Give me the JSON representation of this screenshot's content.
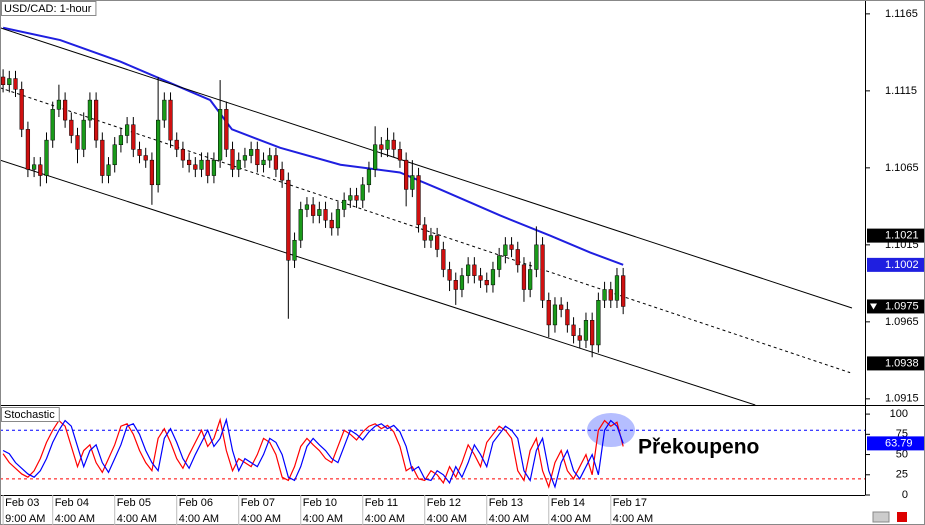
{
  "chart_data": [
    {
      "type": "candlestick",
      "title": "USD/CAD: 1-hour",
      "x": [
        0,
        1,
        2,
        3,
        4,
        5,
        6,
        7,
        8,
        9,
        10,
        11,
        12,
        13,
        14,
        15,
        16,
        17,
        18,
        19,
        20,
        21,
        22,
        23,
        24,
        25,
        26,
        27,
        28,
        29,
        30,
        31,
        32,
        33,
        34,
        35,
        36,
        37,
        38,
        39,
        40,
        41,
        42,
        43,
        44,
        45,
        46,
        47,
        48,
        49,
        50,
        51,
        52,
        53,
        54,
        55,
        56,
        57,
        58,
        59,
        60,
        61,
        62,
        63,
        64,
        65,
        66,
        67,
        68,
        69,
        70,
        71,
        72,
        73,
        74,
        75,
        76,
        77,
        78,
        79,
        80,
        81,
        82,
        83,
        84,
        85,
        86,
        87,
        88,
        89,
        90,
        91,
        92,
        93,
        94,
        95,
        96,
        97,
        98,
        99,
        100
      ],
      "open": [
        1.1124,
        1.1119,
        1.1123,
        1.1116,
        1.109,
        1.1064,
        1.1067,
        1.106,
        1.1083,
        1.1103,
        1.1109,
        1.1096,
        1.1086,
        1.1077,
        1.1096,
        1.1109,
        1.1083,
        1.106,
        1.1067,
        1.108,
        1.1086,
        1.1093,
        1.1077,
        1.1073,
        1.107,
        1.1054,
        1.1096,
        1.1109,
        1.1083,
        1.1077,
        1.107,
        1.1067,
        1.1064,
        1.107,
        1.106,
        1.107,
        1.1103,
        1.1077,
        1.1064,
        1.107,
        1.1073,
        1.1077,
        1.1067,
        1.107,
        1.1073,
        1.1064,
        1.1057,
        1.1005,
        1.1018,
        1.1038,
        1.1041,
        1.1034,
        1.1038,
        1.1031,
        1.1026,
        1.1038,
        1.1044,
        1.1047,
        1.1044,
        1.1054,
        1.1064,
        1.108,
        1.1077,
        1.1083,
        1.1077,
        1.107,
        1.1051,
        1.106,
        1.1028,
        1.1018,
        1.1021,
        1.1012,
        1.0999,
        1.0992,
        1.0986,
        1.0995,
        1.1002,
        1.0995,
        1.0992,
        1.0989,
        1.0999,
        1.1008,
        1.1015,
        1.1012,
        1.1002,
        1.0986,
        1.0999,
        1.1015,
        1.0979,
        1.0963,
        1.0976,
        1.0973,
        1.0963,
        1.0956,
        1.0953,
        1.0966,
        1.095,
        1.0979,
        1.0986,
        1.0979,
        1.0995
      ],
      "high": [
        1.1129,
        1.1128,
        1.1128,
        1.1121,
        1.1095,
        1.1072,
        1.1072,
        1.1088,
        1.1108,
        1.1119,
        1.1114,
        1.1101,
        1.1091,
        1.1101,
        1.1114,
        1.1114,
        1.1088,
        1.1072,
        1.1085,
        1.1091,
        1.1098,
        1.1098,
        1.1082,
        1.1078,
        1.1075,
        1.1124,
        1.1114,
        1.1114,
        1.1088,
        1.1082,
        1.1075,
        1.1072,
        1.1075,
        1.1075,
        1.1075,
        1.1122,
        1.1108,
        1.1082,
        1.1075,
        1.1078,
        1.1082,
        1.1082,
        1.1075,
        1.1078,
        1.1078,
        1.1069,
        1.1062,
        1.1023,
        1.1043,
        1.1046,
        1.1046,
        1.1043,
        1.1043,
        1.1036,
        1.1043,
        1.1049,
        1.1052,
        1.1052,
        1.1059,
        1.1069,
        1.1092,
        1.1085,
        1.1091,
        1.1088,
        1.1082,
        1.1075,
        1.107,
        1.1065,
        1.1033,
        1.1026,
        1.1026,
        1.1017,
        1.1004,
        1.0997,
        1.1,
        1.1007,
        1.1007,
        1.1,
        1.0997,
        1.1004,
        1.1013,
        1.102,
        1.102,
        1.1017,
        1.1007,
        1.1004,
        1.1027,
        1.102,
        1.0984,
        1.0981,
        1.0981,
        1.0978,
        1.0968,
        1.0961,
        1.0971,
        1.0971,
        1.0984,
        1.0991,
        1.0991,
        1.1,
        1.1
      ],
      "low": [
        1.1114,
        1.1114,
        1.1111,
        1.1085,
        1.1059,
        1.1059,
        1.1053,
        1.1055,
        1.1078,
        1.1098,
        1.1091,
        1.1081,
        1.1068,
        1.1072,
        1.1091,
        1.1078,
        1.1055,
        1.1055,
        1.1062,
        1.1075,
        1.1081,
        1.1072,
        1.1068,
        1.1065,
        1.1041,
        1.1049,
        1.1091,
        1.1078,
        1.1072,
        1.1065,
        1.1062,
        1.1059,
        1.1059,
        1.1055,
        1.1055,
        1.1065,
        1.1072,
        1.1059,
        1.1059,
        1.1065,
        1.1068,
        1.1062,
        1.1062,
        1.1065,
        1.1059,
        1.1052,
        1.0967,
        1.1,
        1.1013,
        1.1033,
        1.1029,
        1.1029,
        1.1026,
        1.1021,
        1.1021,
        1.1033,
        1.1039,
        1.1039,
        1.1039,
        1.1049,
        1.1059,
        1.1072,
        1.1072,
        1.1072,
        1.1065,
        1.104,
        1.1046,
        1.1023,
        1.1013,
        1.1013,
        1.1007,
        1.0994,
        1.0985,
        1.0976,
        1.0981,
        1.099,
        1.099,
        1.0987,
        1.0984,
        1.0984,
        1.0994,
        1.1003,
        1.1007,
        1.0997,
        1.0978,
        1.0981,
        1.0994,
        1.0974,
        1.0955,
        1.0958,
        1.0968,
        1.0958,
        1.0951,
        1.0948,
        1.0948,
        1.0942,
        1.0945,
        1.0974,
        1.0974,
        1.0974,
        1.097
      ],
      "close": [
        1.1119,
        1.1123,
        1.1116,
        1.109,
        1.1064,
        1.1067,
        1.106,
        1.1083,
        1.1103,
        1.1109,
        1.1096,
        1.1086,
        1.1077,
        1.1096,
        1.1109,
        1.1083,
        1.106,
        1.1067,
        1.108,
        1.1086,
        1.1093,
        1.1077,
        1.1073,
        1.107,
        1.1054,
        1.1096,
        1.1109,
        1.1083,
        1.1077,
        1.107,
        1.1067,
        1.1064,
        1.107,
        1.106,
        1.107,
        1.1103,
        1.1077,
        1.1064,
        1.107,
        1.1073,
        1.1077,
        1.1067,
        1.107,
        1.1073,
        1.1064,
        1.1057,
        1.1005,
        1.1018,
        1.1038,
        1.1041,
        1.1034,
        1.1038,
        1.1031,
        1.1026,
        1.1038,
        1.1044,
        1.1047,
        1.1044,
        1.1054,
        1.1064,
        1.108,
        1.1077,
        1.1083,
        1.1077,
        1.107,
        1.1051,
        1.106,
        1.1028,
        1.1018,
        1.1021,
        1.1012,
        1.0999,
        1.0992,
        1.0986,
        1.0995,
        1.1002,
        1.0995,
        1.0992,
        1.0989,
        1.0999,
        1.1008,
        1.1015,
        1.1012,
        1.1002,
        1.0986,
        1.0999,
        1.1015,
        1.0979,
        1.0963,
        1.0976,
        1.0973,
        1.0963,
        1.0956,
        1.0953,
        1.0966,
        1.095,
        1.0979,
        1.0986,
        1.0979,
        1.0995,
        1.0975
      ],
      "up_color": "#1a9a1a",
      "down_color": "#d01010",
      "overlays": [
        {
          "x": [
            0,
            9.2,
            18.9,
            25.3,
            33.4,
            36.9,
            44.7,
            54.4,
            64,
            70.5,
            80.2,
            88.2,
            94.7,
            100
          ],
          "values": [
            1.1156,
            1.1148,
            1.1134,
            1.1123,
            1.1109,
            1.109,
            1.1078,
            1.1067,
            1.1062,
            1.1051,
            1.1034,
            1.1021,
            1.101,
            1.1002
          ],
          "color": "#1f1fe0",
          "dashed": false,
          "label_last": true
        },
        {
          "x": [
            -0.5,
            136.9
          ],
          "values": [
            1.1156,
            1.0974
          ],
          "color": "#000000",
          "dashed": false,
          "label_last": false
        },
        {
          "x": [
            -0.5,
            136.6
          ],
          "values": [
            1.1117,
            1.0932
          ],
          "color": "#000000",
          "dashed": true,
          "label_last": false
        },
        {
          "x": [
            -0.5,
            121.3
          ],
          "values": [
            1.107,
            1.0911
          ],
          "color": "#000000",
          "dashed": false,
          "label_last": false
        }
      ],
      "markers": [
        {
          "value": 1.1021,
          "color": "#000000"
        },
        {
          "value": 1.0938,
          "color": "#000000"
        }
      ],
      "last_close_color": "#000000",
      "xlim": [
        -0.5,
        139
      ],
      "ylim": [
        1.0911,
        1.1174
      ],
      "yticks": [
        1.1165,
        1.1115,
        1.1065,
        1.1015,
        1.0965,
        1.0915
      ],
      "grid": false
    },
    {
      "type": "line",
      "title": "Stochastic",
      "x": [
        0,
        1,
        2,
        3,
        4,
        5,
        6,
        7,
        8,
        9,
        10,
        11,
        12,
        13,
        14,
        15,
        16,
        17,
        18,
        19,
        20,
        21,
        22,
        23,
        24,
        25,
        26,
        27,
        28,
        29,
        30,
        31,
        32,
        33,
        34,
        35,
        36,
        37,
        38,
        39,
        40,
        41,
        42,
        43,
        44,
        45,
        46,
        47,
        48,
        49,
        50,
        51,
        52,
        53,
        54,
        55,
        56,
        57,
        58,
        59,
        60,
        61,
        62,
        63,
        64,
        65,
        66,
        67,
        68,
        69,
        70,
        71,
        72,
        73,
        74,
        75,
        76,
        77,
        78,
        79,
        80,
        81,
        82,
        83,
        84,
        85,
        86,
        87,
        88,
        89,
        90,
        91,
        92,
        93,
        94,
        95,
        96,
        97,
        98,
        99,
        100
      ],
      "series": [
        {
          "color": "#ff0000",
          "values": [
            51,
            40,
            33,
            26,
            22,
            30,
            45,
            65,
            80,
            92,
            85,
            60,
            35,
            55,
            62,
            40,
            28,
            45,
            62,
            85,
            88,
            75,
            55,
            40,
            30,
            70,
            82,
            65,
            45,
            33,
            50,
            65,
            80,
            60,
            70,
            93,
            55,
            30,
            45,
            40,
            35,
            50,
            70,
            65,
            50,
            22,
            18,
            35,
            60,
            70,
            62,
            55,
            45,
            40,
            60,
            80,
            75,
            68,
            78,
            85,
            88,
            82,
            86,
            78,
            60,
            30,
            35,
            20,
            18,
            30,
            25,
            15,
            35,
            22,
            40,
            62,
            50,
            35,
            65,
            75,
            85,
            80,
            70,
            30,
            18,
            55,
            70,
            30,
            10,
            40,
            55,
            30,
            20,
            35,
            50,
            25,
            80,
            92,
            85,
            90,
            60
          ]
        },
        {
          "color": "#0000ff",
          "values": [
            55,
            51,
            40,
            33,
            26,
            22,
            30,
            45,
            65,
            80,
            92,
            85,
            60,
            35,
            55,
            62,
            40,
            28,
            45,
            62,
            85,
            88,
            75,
            55,
            40,
            30,
            70,
            82,
            65,
            45,
            33,
            50,
            65,
            80,
            60,
            70,
            93,
            55,
            30,
            45,
            40,
            35,
            50,
            70,
            65,
            50,
            22,
            18,
            35,
            60,
            70,
            62,
            55,
            45,
            40,
            60,
            80,
            75,
            68,
            78,
            85,
            88,
            82,
            86,
            78,
            60,
            30,
            35,
            20,
            18,
            30,
            25,
            15,
            35,
            22,
            40,
            62,
            50,
            35,
            65,
            75,
            85,
            80,
            70,
            30,
            18,
            55,
            70,
            30,
            10,
            40,
            55,
            30,
            20,
            35,
            50,
            25,
            80,
            92,
            85,
            63.79
          ]
        }
      ],
      "label_last_series": 1,
      "levels": [
        {
          "value": 80,
          "color": "#0000ff"
        },
        {
          "value": 20,
          "color": "#ff0000"
        }
      ],
      "annotation": "Překoupeno",
      "xlim": [
        -0.5,
        139
      ],
      "ylim": [
        0,
        110
      ],
      "yticks": [
        0,
        25,
        50,
        75,
        100
      ],
      "grid": false,
      "xticks": [
        {
          "value": 0,
          "label": "Feb 03"
        },
        {
          "value": 8,
          "label": "Feb 04"
        },
        {
          "value": 18,
          "label": "Feb 05"
        },
        {
          "value": 28,
          "label": "Feb 06"
        },
        {
          "value": 38,
          "label": "Feb 07"
        },
        {
          "value": 48,
          "label": "Feb 10"
        },
        {
          "value": 58,
          "label": "Feb 11"
        },
        {
          "value": 68,
          "label": "Feb 12"
        },
        {
          "value": 78,
          "label": "Feb 13"
        },
        {
          "value": 88,
          "label": "Feb 14"
        },
        {
          "value": 98,
          "label": "Feb 17"
        }
      ],
      "xtick_times": [
        "9:00 AM",
        "4:00 AM",
        "4:00 AM",
        "4:00 AM",
        "4:00 AM",
        "4:00 AM",
        "4:00 AM",
        "4:00 AM",
        "4:00 AM",
        "4:00 AM",
        "4:00 AM"
      ]
    }
  ]
}
